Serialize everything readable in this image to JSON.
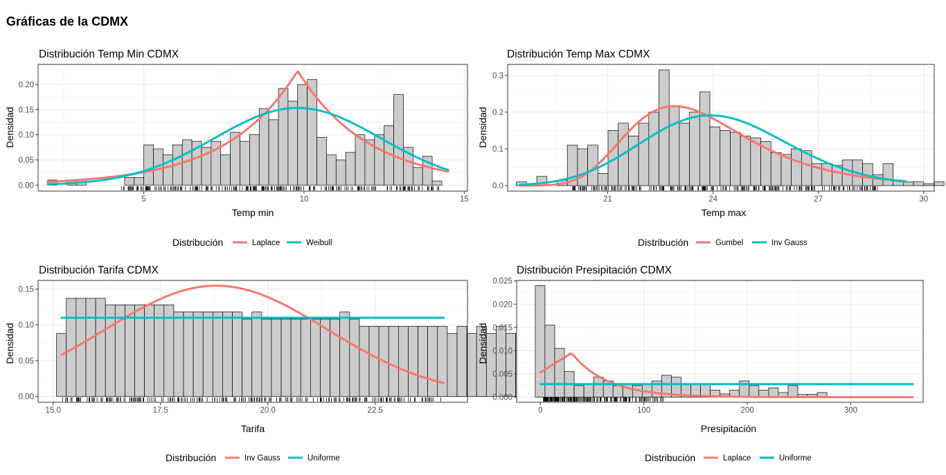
{
  "page": {
    "title": "Gráficas de la CDMX"
  },
  "colors": {
    "red": "#F8766D",
    "teal": "#00BFC4",
    "bar_fill": "#CCCCCC",
    "grid": "#EBEBEB"
  },
  "chart_data": [
    {
      "type": "histogram",
      "title": "Distribución Temp Min CDMX",
      "xlabel": "Temp min",
      "ylabel": "Densidad",
      "xlim": [
        1.7,
        15.1
      ],
      "ylim": [
        -0.012,
        0.24
      ],
      "xticks": [
        5,
        10,
        15
      ],
      "yticks": [
        0.0,
        0.05,
        0.1,
        0.15,
        0.2
      ],
      "xtick_labels": [
        "5",
        "10",
        "15"
      ],
      "ytick_labels": [
        "0.00",
        "0.05",
        "0.10",
        "0.15",
        "0.20"
      ],
      "bins": {
        "start": 2.0,
        "width": 0.3,
        "values": [
          0.01,
          0,
          0.01,
          0.01,
          0,
          0,
          0,
          0,
          0.015,
          0.015,
          0.08,
          0.072,
          0.06,
          0.08,
          0.09,
          0.087,
          0.075,
          0.087,
          0.06,
          0.105,
          0.087,
          0.1,
          0.152,
          0.13,
          0.192,
          0.167,
          0.2,
          0.21,
          0.095,
          0.06,
          0.05,
          0.065,
          0.1,
          0.09,
          0.1,
          0.118,
          0.18,
          0.075,
          0.035,
          0.057,
          0.008
        ]
      },
      "rug": {
        "from": 4.3,
        "to": 14.3
      },
      "legend": {
        "title": "Distribución",
        "entries": [
          {
            "label": "Laplace",
            "color": "#F8766D"
          },
          {
            "label": "Weibull",
            "color": "#00BFC4"
          }
        ]
      },
      "series": [
        {
          "name": "Laplace",
          "dist": "laplace",
          "params": {
            "mu": 9.8,
            "b": 2.2
          },
          "domain": [
            2.0,
            14.5
          ]
        },
        {
          "name": "Weibull",
          "dist": "normal",
          "params": {
            "mu": 9.8,
            "sd": 2.6
          },
          "domain": [
            2.0,
            14.5
          ]
        }
      ]
    },
    {
      "type": "histogram",
      "title": "Distribución Temp Max CDMX",
      "xlabel": "Temp max",
      "ylabel": "Densidad",
      "xlim": [
        18.15,
        30.3
      ],
      "ylim": [
        -0.015,
        0.33
      ],
      "xticks": [
        21,
        24,
        27,
        30
      ],
      "yticks": [
        0.0,
        0.1,
        0.2,
        0.3
      ],
      "xtick_labels": [
        "21",
        "24",
        "27",
        "30"
      ],
      "ytick_labels": [
        "0.0",
        "0.1",
        "0.2",
        "0.3"
      ],
      "bins": {
        "start": 18.4,
        "width": 0.29,
        "values": [
          0.01,
          0.005,
          0.025,
          0,
          0.015,
          0.11,
          0.1,
          0.11,
          0.033,
          0.15,
          0.17,
          0.135,
          0.17,
          0.2,
          0.315,
          0.215,
          0.17,
          0.2,
          0.255,
          0.16,
          0.15,
          0.145,
          0.135,
          0.13,
          0.12,
          0.09,
          0.085,
          0.1,
          0.095,
          0.06,
          0.06,
          0.055,
          0.07,
          0.07,
          0.06,
          0.03,
          0.06,
          0.015,
          0.01,
          0.01,
          0.005,
          0.01
        ]
      },
      "rug": {
        "from": 20.0,
        "to": 28.7
      },
      "legend": {
        "title": "Distribución",
        "entries": [
          {
            "label": "Gumbel",
            "color": "#F8766D"
          },
          {
            "label": "Inv Gauss",
            "color": "#00BFC4"
          }
        ]
      },
      "series": [
        {
          "name": "Gumbel",
          "dist": "gumbel",
          "params": {
            "mu": 22.9,
            "beta": 1.7
          },
          "domain": [
            18.5,
            29.5
          ]
        },
        {
          "name": "Inv Gauss",
          "dist": "invgauss",
          "params": {
            "mu": 24.2,
            "lambda": 3200
          },
          "domain": [
            18.5,
            29.5
          ]
        }
      ]
    },
    {
      "type": "histogram",
      "title": "Distribución Tarifa CDMX",
      "xlabel": "Tarifa",
      "ylabel": "Densidad",
      "xlim": [
        14.65,
        24.65
      ],
      "ylim": [
        -0.008,
        0.162
      ],
      "xticks": [
        15.0,
        17.5,
        20.0,
        22.5
      ],
      "yticks": [
        0.0,
        0.05,
        0.1,
        0.15
      ],
      "xtick_labels": [
        "15.0",
        "17.5",
        "20.0",
        "22.5"
      ],
      "ytick_labels": [
        "0.00",
        "0.05",
        "0.10",
        "0.15"
      ],
      "bins": {
        "start": 15.08,
        "width": 0.2275,
        "values": [
          0.088,
          0.137,
          0.137,
          0.137,
          0.137,
          0.128,
          0.128,
          0.128,
          0.128,
          0.128,
          0.128,
          0.128,
          0.118,
          0.118,
          0.118,
          0.118,
          0.118,
          0.118,
          0.118,
          0.108,
          0.118,
          0.108,
          0.108,
          0.108,
          0.108,
          0.108,
          0.108,
          0.108,
          0.108,
          0.118,
          0.108,
          0.098,
          0.098,
          0.098,
          0.098,
          0.098,
          0.098,
          0.098,
          0.098,
          0.098,
          0.088,
          0.098,
          0.088,
          0.098,
          0.088,
          0.098,
          0.088,
          0.088,
          0.088,
          0.088,
          0.088,
          0.04
        ]
      },
      "rug": {
        "from": 15.15,
        "to": 24.1
      },
      "legend": {
        "title": "Distribución",
        "entries": [
          {
            "label": "Inv Gauss",
            "color": "#F8766D"
          },
          {
            "label": "Uniforme",
            "color": "#00BFC4"
          }
        ]
      },
      "series": [
        {
          "name": "Inv Gauss",
          "dist": "normal",
          "params": {
            "mu": 18.8,
            "sd": 2.58
          },
          "domain": [
            15.2,
            24.1
          ]
        },
        {
          "name": "Uniforme",
          "dist": "const",
          "params": {
            "y": 0.11
          },
          "domain": [
            15.2,
            24.1
          ]
        }
      ]
    },
    {
      "type": "histogram",
      "title": "Distribución Presipitación CDMX",
      "xlabel": "Presipitación",
      "ylabel": "Densidad",
      "xlim": [
        -23,
        370
      ],
      "ylim": [
        -0.0011,
        0.0251
      ],
      "xticks": [
        0,
        100,
        200,
        300
      ],
      "yticks": [
        0.0,
        0.005,
        0.01,
        0.015,
        0.02,
        0.025
      ],
      "xtick_labels": [
        "0",
        "100",
        "200",
        "300"
      ],
      "ytick_labels": [
        "0.000",
        "0.005",
        "0.010",
        "0.015",
        "0.020",
        "0.025"
      ],
      "bins": {
        "start": -5,
        "width": 9.4,
        "values": [
          0.024,
          0.0155,
          0.0105,
          0.0055,
          0.0025,
          0.0028,
          0.0043,
          0.0035,
          0.0025,
          0.0028,
          0.0025,
          0.0028,
          0.0035,
          0.0047,
          0.0043,
          0.0028,
          0.0028,
          0.0028,
          0.0015,
          0.0007,
          0.0015,
          0.0035,
          0.0025,
          0.0015,
          0.002,
          0.001,
          0.0025,
          0.0006,
          0.0006,
          0.001,
          0,
          0,
          0,
          0,
          0,
          0,
          0,
          0,
          0,
          0,
          0,
          0,
          0,
          0.0004
        ]
      },
      "rug": {
        "from": 3,
        "to": 120
      },
      "legend": {
        "title": "Distribución",
        "entries": [
          {
            "label": "Laplace",
            "color": "#F8766D"
          },
          {
            "label": "Uniforme",
            "color": "#00BFC4"
          }
        ]
      },
      "series": [
        {
          "name": "Laplace",
          "dist": "laplace_tail",
          "params": {
            "mu": 30,
            "peak": 0.0095,
            "start": 0.0053,
            "b": 35
          },
          "domain": [
            0,
            360
          ]
        },
        {
          "name": "Uniforme",
          "dist": "const",
          "params": {
            "y": 0.0028
          },
          "domain": [
            0,
            360
          ]
        }
      ]
    }
  ]
}
